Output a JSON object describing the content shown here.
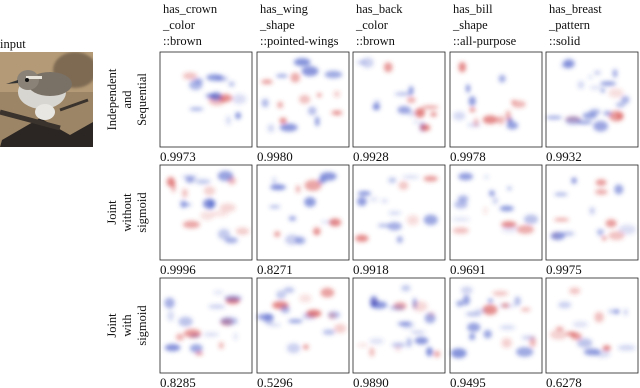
{
  "input_label": "input",
  "columns": [
    {
      "lines": [
        "has_crown",
        "_color",
        "::brown"
      ]
    },
    {
      "lines": [
        "has_wing",
        "_shape",
        "::pointed-wings"
      ]
    },
    {
      "lines": [
        "has_back",
        "_color",
        "::brown"
      ]
    },
    {
      "lines": [
        "has_bill",
        "_shape",
        "::all-purpose"
      ]
    },
    {
      "lines": [
        "has_breast",
        "_pattern",
        "::solid"
      ]
    }
  ],
  "rows": [
    {
      "label_lines": [
        "Independent",
        "and",
        "Sequential"
      ],
      "scores": [
        "0.9973",
        "0.9980",
        "0.9928",
        "0.9978",
        "0.9932"
      ]
    },
    {
      "label_lines": [
        "Joint",
        "without",
        "sigmoid"
      ],
      "scores": [
        "0.9996",
        "0.8271",
        "0.9918",
        "0.9691",
        "0.9975"
      ]
    },
    {
      "label_lines": [
        "Joint",
        "with",
        "sigmoid"
      ],
      "scores": [
        "0.8285",
        "0.5296",
        "0.9890",
        "0.9495",
        "0.6278"
      ]
    }
  ]
}
